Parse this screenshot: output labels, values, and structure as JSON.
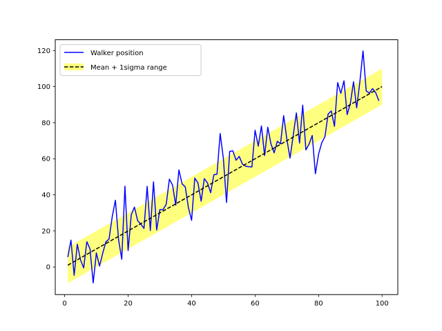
{
  "chart_data": {
    "type": "line",
    "title": "",
    "xlabel": "",
    "ylabel": "",
    "xlim": [
      -2.95,
      104.95
    ],
    "ylim": [
      -15.3,
      126.0
    ],
    "xticks": [
      0,
      20,
      40,
      60,
      80,
      100
    ],
    "yticks": [
      0,
      20,
      40,
      60,
      80,
      100,
      120
    ],
    "grid": false,
    "legend_position": "top-left",
    "x": [
      1,
      2,
      3,
      4,
      5,
      6,
      7,
      8,
      9,
      10,
      11,
      12,
      13,
      14,
      15,
      16,
      17,
      18,
      19,
      20,
      21,
      22,
      23,
      24,
      25,
      26,
      27,
      28,
      29,
      30,
      31,
      32,
      33,
      34,
      35,
      36,
      37,
      38,
      39,
      40,
      41,
      42,
      43,
      44,
      45,
      46,
      47,
      48,
      49,
      50,
      51,
      52,
      53,
      54,
      55,
      56,
      57,
      58,
      59,
      60,
      61,
      62,
      63,
      64,
      65,
      66,
      67,
      68,
      69,
      70,
      71,
      72,
      73,
      74,
      75,
      76,
      77,
      78,
      79,
      80,
      81,
      82,
      83,
      84,
      85,
      86,
      87,
      88,
      89,
      90,
      91,
      92,
      93,
      94,
      95,
      96,
      97,
      98,
      99,
      100
    ],
    "series": [
      {
        "name": "Walker position",
        "style": "solid",
        "color": "#0000ff",
        "values": [
          5.5,
          14.9,
          -4.6,
          12.6,
          4.0,
          -0.5,
          14.0,
          10.0,
          -8.8,
          7.8,
          0.5,
          7.6,
          14.0,
          15.5,
          27.9,
          37.0,
          15.1,
          4.3,
          44.8,
          9.1,
          29.0,
          33.2,
          25.7,
          23.8,
          21.4,
          44.7,
          20.2,
          47.2,
          20.5,
          31.8,
          31.8,
          34.7,
          48.7,
          45.4,
          34.3,
          53.8,
          46.1,
          44.4,
          32.9,
          25.9,
          49.3,
          46.6,
          36.5,
          49.0,
          46.6,
          41.2,
          51.1,
          51.5,
          74.0,
          60.3,
          35.8,
          64.1,
          64.4,
          59.2,
          61.3,
          57.1,
          55.9,
          55.6,
          55.5,
          75.8,
          67.0,
          78.2,
          61.8,
          77.5,
          68.2,
          63.3,
          69.7,
          68.3,
          83.9,
          70.9,
          60.4,
          72.8,
          85.4,
          68.7,
          89.7,
          64.9,
          68.1,
          72.9,
          51.7,
          62.6,
          68.9,
          72.2,
          84.8,
          86.5,
          78.0,
          102.2,
          96.3,
          103.2,
          84.5,
          90.6,
          102.7,
          88.2,
          102.6,
          119.8,
          97.6,
          96.4,
          98.9,
          96.6,
          92.1,
          null
        ]
      },
      {
        "name": "Mean + 1sigma range",
        "style": "dashed",
        "color": "#000000",
        "x_range": [
          1,
          100
        ],
        "values_range": [
          1,
          100
        ]
      }
    ],
    "band": {
      "color": "#ffff00",
      "opacity": 0.5,
      "lower_offset": -10,
      "upper_offset": 10
    }
  }
}
